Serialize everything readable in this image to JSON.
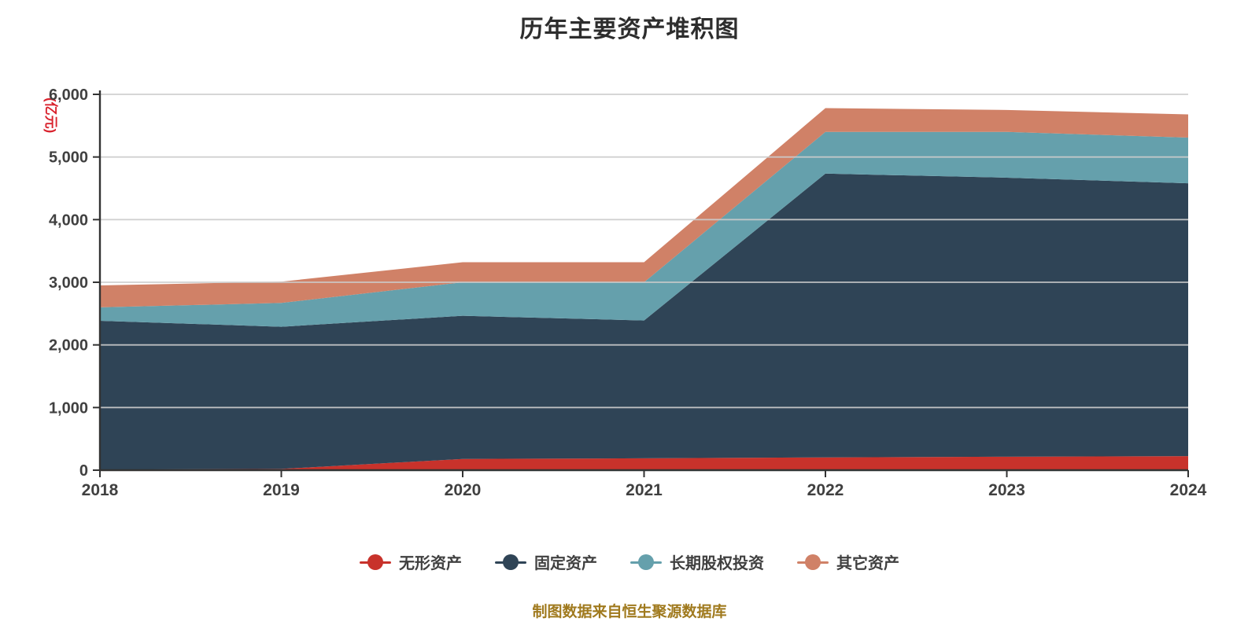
{
  "chart_data": {
    "type": "area",
    "stacked": true,
    "title": "历年主要资产堆积图",
    "source_note": "制图数据来自恒生聚源数据库",
    "y_name": "(亿元)",
    "categories": [
      "2018",
      "2019",
      "2020",
      "2021",
      "2022",
      "2023",
      "2024"
    ],
    "series": [
      {
        "name": "无形资产",
        "color": "#c8322b",
        "values": [
          10,
          20,
          180,
          190,
          205,
          215,
          225
        ]
      },
      {
        "name": "固定资产",
        "color": "#2f4456",
        "values": [
          2375,
          2270,
          2285,
          2200,
          4530,
          4455,
          4355
        ]
      },
      {
        "name": "长期股权投资",
        "color": "#65a0ac",
        "values": [
          215,
          380,
          535,
          610,
          665,
          730,
          730
        ]
      },
      {
        "name": "其它资产",
        "color": "#d08167",
        "values": [
          350,
          340,
          320,
          320,
          380,
          350,
          370
        ]
      }
    ],
    "ylim": [
      0,
      6000
    ],
    "y_tick_interval": 1000,
    "y_tick_labels": [
      "0",
      "1,000",
      "2,000",
      "3,000",
      "4,000",
      "5,000",
      "6,000"
    ],
    "grid": true,
    "legend_position": "bottom"
  },
  "style": {
    "background": "#ffffff",
    "axis_color": "#333333",
    "grid_color": "#cccccc",
    "tick_label_color": "#404040",
    "title_color": "#2d2d2d",
    "y_name_color": "#d9232e",
    "caption_color": "#a07a1e"
  }
}
